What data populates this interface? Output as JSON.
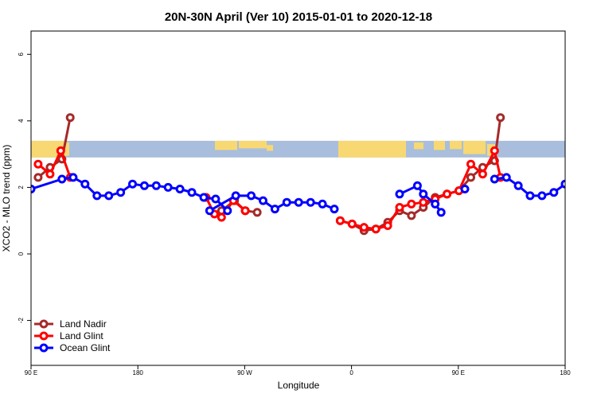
{
  "chart_data": {
    "type": "line",
    "title": "20N-30N April (Ver 10)   2015-01-01 to 2020-12-18",
    "xlabel": "Longitude",
    "ylabel": "XCO2 - MLO trend (ppm)",
    "xlim": [
      90,
      450
    ],
    "ylim": [
      -3.35,
      6.7
    ],
    "x_ticks": [
      {
        "value": 90,
        "label": "90 E"
      },
      {
        "value": 162,
        "label": "180"
      },
      {
        "value": 234,
        "label": "90 W"
      },
      {
        "value": 306,
        "label": "0"
      },
      {
        "value": 378,
        "label": "90 E"
      },
      {
        "value": 450,
        "label": "180"
      }
    ],
    "y_ticks": [
      {
        "value": -2,
        "label": "-2"
      },
      {
        "value": 0,
        "label": "0"
      },
      {
        "value": 2,
        "label": "2"
      },
      {
        "value": 4,
        "label": "4"
      },
      {
        "value": 6,
        "label": "6"
      }
    ],
    "map_band": {
      "y_low": 2.9,
      "y_high": 3.4,
      "ocean_color": "#a8bedc",
      "land_color": "#f8d873"
    },
    "legend_position": "bottom-left",
    "series": [
      {
        "name": "Land Nadir",
        "color": "#a52a2a",
        "segments": [
          [
            [
              94.8,
              2.3
            ],
            [
              102.8,
              2.6
            ],
            [
              110.8,
              2.85
            ],
            [
              116.4,
              4.1
            ]
          ],
          [
            [
              218.4,
              1.3
            ],
            [
              227.2,
              1.6
            ],
            [
              234.4,
              1.3
            ],
            [
              242.4,
              1.25
            ]
          ],
          [
            [
              298.4,
              1.0
            ],
            [
              306.4,
              0.9
            ],
            [
              314.4,
              0.7
            ],
            [
              322.4,
              0.75
            ],
            [
              330.4,
              0.95
            ],
            [
              338.4,
              1.3
            ],
            [
              346.4,
              1.15
            ],
            [
              354.4,
              1.4
            ],
            [
              362.4,
              1.7
            ],
            [
              370.4,
              1.8
            ],
            [
              378.4,
              1.9
            ],
            [
              386.4,
              2.3
            ],
            [
              394.4,
              2.6
            ],
            [
              402.4,
              2.8
            ],
            [
              406.4,
              4.1
            ]
          ]
        ]
      },
      {
        "name": "Land Glint",
        "color": "#ff0000",
        "segments": [
          [
            [
              94.8,
              2.7
            ],
            [
              102.8,
              2.4
            ],
            [
              110.0,
              3.1
            ],
            [
              116.4,
              2.3
            ]
          ],
          [
            [
              208.0,
              1.7
            ],
            [
              213.6,
              1.2
            ],
            [
              218.4,
              1.1
            ],
            [
              226.4,
              1.6
            ],
            [
              234.4,
              1.3
            ]
          ],
          [
            [
              298.4,
              1.0
            ],
            [
              306.4,
              0.9
            ],
            [
              314.4,
              0.8
            ],
            [
              322.4,
              0.75
            ],
            [
              330.4,
              0.85
            ],
            [
              338.4,
              1.4
            ],
            [
              346.4,
              1.5
            ],
            [
              354.4,
              1.55
            ],
            [
              362.4,
              1.65
            ],
            [
              370.4,
              1.8
            ],
            [
              378.4,
              1.9
            ],
            [
              386.4,
              2.7
            ],
            [
              394.4,
              2.4
            ],
            [
              402.4,
              3.1
            ],
            [
              406.4,
              2.3
            ]
          ]
        ]
      },
      {
        "name": "Ocean Glint",
        "color": "#0000ff",
        "segments": [
          [
            [
              90.0,
              1.95
            ],
            [
              110.8,
              2.25
            ],
            [
              118.4,
              2.3
            ],
            [
              126.4,
              2.1
            ],
            [
              134.4,
              1.75
            ],
            [
              142.4,
              1.75
            ],
            [
              150.4,
              1.85
            ],
            [
              158.4,
              2.1
            ],
            [
              166.4,
              2.05
            ],
            [
              174.4,
              2.05
            ],
            [
              182.4,
              2.0
            ],
            [
              190.4,
              1.95
            ],
            [
              198.4,
              1.85
            ],
            [
              206.4,
              1.7
            ],
            [
              214.4,
              1.65
            ],
            [
              222.4,
              1.3
            ]
          ],
          [
            [
              210.4,
              1.3
            ],
            [
              228.0,
              1.75
            ],
            [
              238.4,
              1.75
            ],
            [
              246.4,
              1.6
            ],
            [
              254.4,
              1.35
            ],
            [
              262.4,
              1.55
            ],
            [
              270.4,
              1.55
            ],
            [
              278.4,
              1.55
            ],
            [
              286.4,
              1.5
            ],
            [
              294.4,
              1.35
            ]
          ],
          [
            [
              338.4,
              1.8
            ],
            [
              350.4,
              2.05
            ],
            [
              354.4,
              1.8
            ],
            [
              362.4,
              1.5
            ],
            [
              366.4,
              1.25
            ]
          ],
          [
            [
              382.4,
              1.95
            ]
          ],
          [
            [
              402.4,
              2.25
            ],
            [
              410.4,
              2.3
            ],
            [
              418.4,
              2.05
            ],
            [
              426.4,
              1.75
            ],
            [
              434.4,
              1.75
            ],
            [
              442.4,
              1.85
            ],
            [
              450.0,
              2.1
            ]
          ]
        ]
      }
    ]
  }
}
